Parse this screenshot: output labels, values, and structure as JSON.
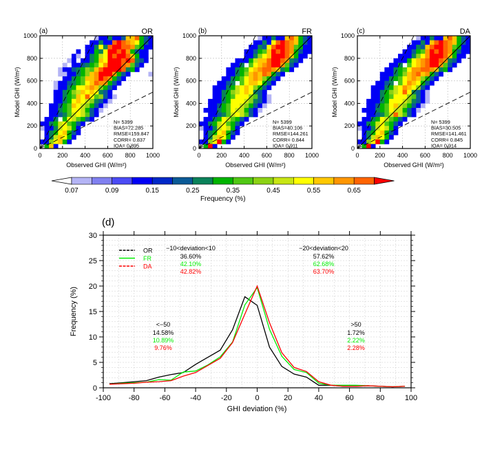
{
  "chart_data": [
    {
      "type": "heatmap",
      "panel_label": "(a)",
      "title": "OR",
      "xlabel": "Observed GHI (W/m²)",
      "ylabel": "Model GHI (W/m²)",
      "xlim": [
        0,
        1000
      ],
      "ylim": [
        0,
        1000
      ],
      "ticks": [
        0,
        200,
        400,
        600,
        800,
        1000
      ],
      "bin_size": 40,
      "grid": true,
      "reference_lines": [
        "y=x",
        "y=2x",
        "y=0.5x"
      ],
      "stats": [
        "N=  5399",
        "BIAS=72.285",
        "RMSE=159.847",
        "CORR= 0.837",
        "IOA= 0.895"
      ],
      "bins_top_to_bottom": [
        "0000000000001447446ddf864",
        "0000000000044744fgfedc864",
        "0000000000447c7fggffe9844",
        "00000000404487cggfge86440",
        "0000000410478bcgfggfd8440",
        "0000001404478dcgggfgf7640",
        "0000010446789cegggfe96400",
        "0000144678a9dfggggf784000",
        "0000114478adeggge86400001",
        "0000044789ddegfe864000000",
        "0001446789cdfee8640000000",
        "00014478ccdeda86400000000",
        "0004478abdcdc764000000000",
        "00044789dcfc9a64100000000",
        "0004478cdcba7641000000000",
        "0044689dcba86410000000000",
        "0044789ccb864100000000000",
        "0044679bcb964000000000000",
        "0447 8cb98640000000000000",
        "4478bc9864000000000000000",
        "1447bcb840000000000000000",
        "0478cd8640000000000000000",
        "047bdc8400000000000000000",
        "44acd84000000000000000000",
        "08d4000000000000000000000"
      ]
    },
    {
      "type": "heatmap",
      "panel_label": "(b)",
      "title": "FR",
      "xlabel": "Observed GHI (W/m²)",
      "ylabel": "Model GHI (W/m²)",
      "xlim": [
        0,
        1000
      ],
      "ylim": [
        0,
        1000
      ],
      "ticks": [
        0,
        200,
        400,
        600,
        800,
        1000
      ],
      "bin_size": 40,
      "grid": true,
      "reference_lines": [
        "y=x",
        "y=2x",
        "y=0.5x"
      ],
      "stats": [
        "N=  5399",
        "BIAS=40.106",
        "RMSE=144.261",
        "CORR= 0.844",
        "IOA= 0.911"
      ],
      "bins_top_to_bottom": [
        "0000000000000144744dfd864",
        "0000000000004474cfgfed864",
        "000000000004476cfggfe9844",
        "000000000044689dgfgfe8644",
        "0000000000447acdgggfd8440",
        "000000004448bddfggfe76400",
        "0000000447 9cdefgge964000",
        "00000044789cdeffed7840000",
        "0000004478adedfe864000000",
        "0000044789cdeda8640000000",
        "00004467 9cddc86400000000",
        "00044478bcdca864000000000",
        "0004478abcdc7640000000000",
        "00044789ccca9641000000000",
        "0044478cccba7641000000000",
        "0044689ccba86410000000000",
        "0444789cbb864100000000000",
        "0044679bcb964000000000000",
        "04478cb986400000000000000",
        "4478bc9864000000000000000",
        "1447bcb840000000000000000",
        "0478cd8640000000000000000",
        "047bdc8400000000000000000",
        "44acg84000000000000000000",
        "08g4000000000000000000000"
      ]
    },
    {
      "type": "heatmap",
      "panel_label": "(c)",
      "title": "DA",
      "xlabel": "Observed GHI (W/m²)",
      "ylabel": "Model GHI (W/m²)",
      "xlim": [
        0,
        1000
      ],
      "ylim": [
        0,
        1000
      ],
      "ticks": [
        0,
        200,
        400,
        600,
        800,
        1000
      ],
      "bin_size": 40,
      "grid": true,
      "reference_lines": [
        "y=x",
        "y=2x",
        "y=0.5x"
      ],
      "stats": [
        "N=  5399",
        "BIAS=30.505",
        "RMSE=141.461",
        "CORR= 0.845",
        "IOA= 0.914"
      ],
      "bins_top_to_bottom": [
        "0000000000000144744dfd864",
        "0000000000004474dfgfed864",
        "000000000004476dfggfe9844",
        "000000000044689egfgfe8644",
        "0000000004447acegggfd8440",
        "000000004448cdefggfe76400",
        "0000000447 9cdefgge964000",
        "00000044789ceeffed7840000",
        "0000044478adefde864000000",
        "0000044789cdeda8640000000",
        "00004467 9cedc86400000000",
        "00044478bcedca64000000000",
        "0004478abcfc7641000000000",
        "00044789ccca9641000000000",
        "0044478cccba7641000000000",
        "0044689cdba86410000000000",
        "0444789cbb864100000000000",
        "0044679bfb964000000000000",
        "04478cb986400000000000000",
        "4478bc9864000000000000000",
        "1447bcb840000000000000000",
        "0478cd8640000000000000000",
        "047bdc8400000000000000000",
        "44acg84000000000000000000",
        "08g4000000000000000000000"
      ]
    },
    {
      "type": "colorbar",
      "label": "Frequency (%)",
      "boundaries": [
        0.07,
        0.08,
        0.09,
        0.1,
        0.15,
        0.2,
        0.25,
        0.3,
        0.35,
        0.4,
        0.45,
        0.5,
        0.55,
        0.6,
        0.65,
        0.7
      ],
      "tick_labels": [
        "0.07",
        "0.09",
        "0.15",
        "0.25",
        "0.35",
        "0.45",
        "0.55",
        "0.65"
      ],
      "colors": [
        "#ffffff",
        "#b4b4f5",
        "#8080f0",
        "#4b4bf5",
        "#0000f5",
        "#0028c8",
        "#0a5a96",
        "#0a825a",
        "#00b400",
        "#50c814",
        "#8cd214",
        "#c8e614",
        "#ffff00",
        "#ffc800",
        "#ff9600",
        "#ff6400",
        "#ff0000"
      ]
    },
    {
      "type": "line",
      "panel_label": "(d)",
      "xlabel": "GHI deviation (%)",
      "ylabel": "Frequency (%)",
      "xlim": [
        -100,
        100
      ],
      "ylim": [
        0,
        30
      ],
      "xticks": [
        -100,
        -80,
        -60,
        -40,
        -20,
        0,
        20,
        40,
        60,
        80,
        100
      ],
      "yticks": [
        0,
        5,
        10,
        15,
        20,
        25,
        30
      ],
      "grid": true,
      "legend_placement": "top-left",
      "x": [
        -96,
        -88,
        -80,
        -72,
        -64,
        -56,
        -48,
        -40,
        -32,
        -24,
        -16,
        -8,
        0,
        8,
        16,
        24,
        32,
        40,
        48,
        56,
        64,
        72,
        80,
        88,
        96
      ],
      "series": [
        {
          "name": "OR",
          "color": "#000000",
          "values": [
            0.8,
            1.0,
            1.2,
            1.4,
            2.1,
            2.6,
            3.0,
            4.6,
            6.0,
            7.4,
            11.4,
            17.9,
            16.2,
            8.0,
            4.2,
            2.7,
            2.1,
            0.5,
            0.5,
            0.3,
            0.3,
            0.4,
            0.3,
            0.2,
            0.3
          ]
        },
        {
          "name": "FR",
          "color": "#00ee00",
          "values": [
            0.7,
            0.9,
            1.0,
            1.1,
            1.6,
            1.5,
            3.1,
            3.3,
            4.5,
            6.1,
            9.0,
            16.3,
            19.7,
            11.5,
            6.2,
            3.6,
            3.0,
            0.9,
            0.5,
            0.5,
            0.5,
            0.4,
            0.3,
            0.2,
            0.3
          ]
        },
        {
          "name": "DA",
          "color": "#ff0000",
          "values": [
            0.7,
            0.8,
            0.9,
            1.1,
            1.2,
            1.4,
            2.3,
            3.0,
            4.4,
            5.8,
            8.9,
            14.5,
            20.0,
            12.8,
            6.9,
            4.0,
            3.2,
            1.2,
            0.5,
            0.3,
            0.3,
            0.4,
            0.3,
            0.2,
            0.3
          ]
        }
      ],
      "annotations": {
        "range10": {
          "title": "−10<deviation<10",
          "values": [
            "36.60%",
            "42.10%",
            "42.82%"
          ]
        },
        "range20": {
          "title": "−20<deviation<20",
          "values": [
            "57.62%",
            "62.68%",
            "63.70%"
          ]
        },
        "below50": {
          "title": "<−50",
          "values": [
            "14.58%",
            "10.89%",
            "9.76%"
          ]
        },
        "above50": {
          "title": ">50",
          "values": [
            "1.72%",
            "2.22%",
            "2.28%"
          ]
        }
      }
    }
  ]
}
